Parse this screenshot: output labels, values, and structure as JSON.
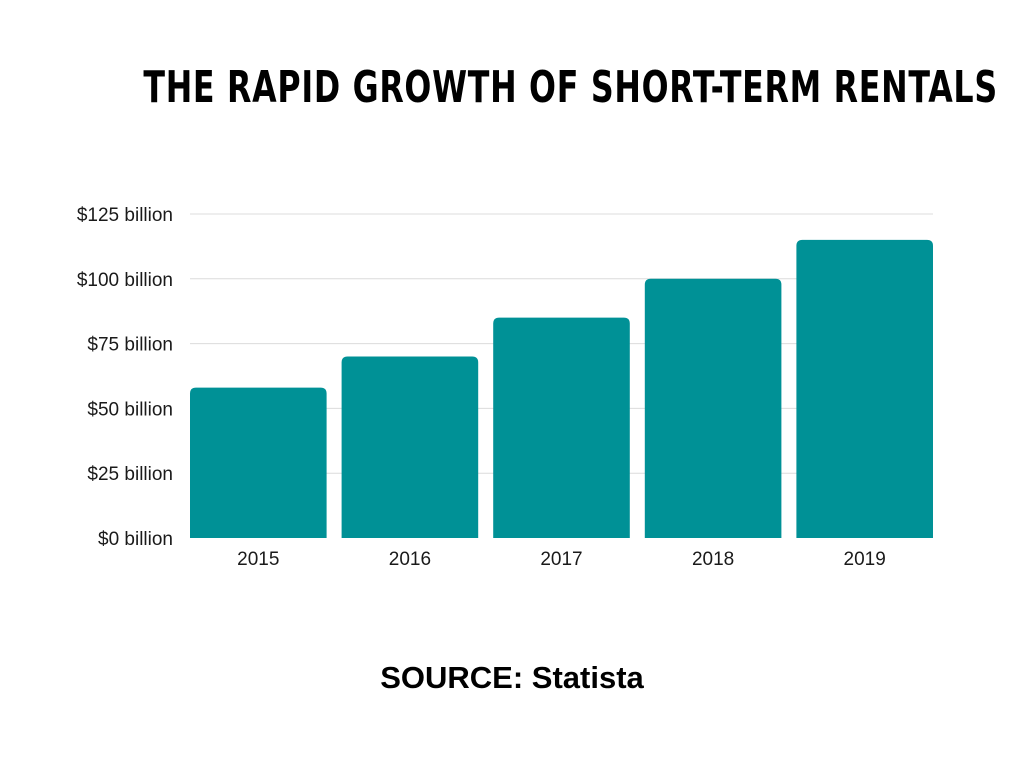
{
  "title": "THE RAPID GROWTH OF SHORT-TERM RENTALS",
  "source": "SOURCE: Statista",
  "colors": {
    "bar": "#009196",
    "grid": "#dcdcdc",
    "text": "#1a1a1a"
  },
  "chart_data": {
    "type": "bar",
    "title": "THE RAPID GROWTH OF SHORT-TERM RENTALS",
    "xlabel": "",
    "ylabel": "",
    "categories": [
      "2015",
      "2016",
      "2017",
      "2018",
      "2019"
    ],
    "values": [
      58,
      70,
      85,
      100,
      115
    ],
    "ylim": [
      0,
      125
    ],
    "y_ticks": [
      0,
      25,
      50,
      75,
      100,
      125
    ],
    "y_tick_labels": [
      "$0 billion",
      "$25 billion",
      "$50 billion",
      "$75 billion",
      "$100 billion",
      "$125 billion"
    ],
    "grid": true,
    "legend": "none"
  }
}
